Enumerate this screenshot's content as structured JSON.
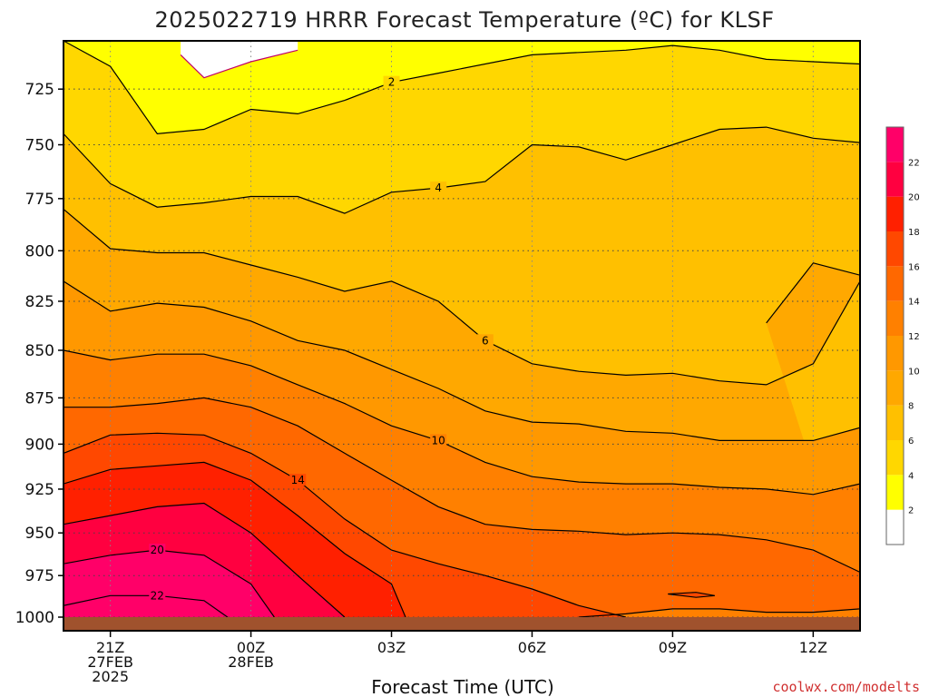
{
  "chart_data": {
    "type": "contour",
    "title": "2025022719 HRRR Forecast Temperature (ºC) for KLSF",
    "xlabel": "Forecast Time (UTC)",
    "ylabel": "",
    "credit": "coolwx.com/modelts",
    "colors": {
      "ground": "#a0522d",
      "contour_line": "#000000",
      "freezing_line": "#c0006a"
    },
    "x_ticks": [
      {
        "hour": 21,
        "lines": [
          "21Z",
          "27FEB",
          "2025"
        ]
      },
      {
        "hour": 24,
        "lines": [
          "00Z",
          "28FEB"
        ]
      },
      {
        "hour": 27,
        "lines": [
          "03Z"
        ]
      },
      {
        "hour": 30,
        "lines": [
          "06Z"
        ]
      },
      {
        "hour": 33,
        "lines": [
          "09Z"
        ]
      },
      {
        "hour": 36,
        "lines": [
          "12Z"
        ]
      }
    ],
    "xlim": [
      20,
      37
    ],
    "y_ticks": [
      "725",
      "750",
      "775",
      "800",
      "825",
      "850",
      "875",
      "900",
      "925",
      "950",
      "975",
      "1000"
    ],
    "ylim": [
      1000,
      704
    ],
    "y_scale": "log",
    "colorbar": {
      "levels": [
        {
          "label": "",
          "color": "#ffffff"
        },
        {
          "label": "2",
          "color": "#ffff00"
        },
        {
          "label": "4",
          "color": "#ffd700"
        },
        {
          "label": "6",
          "color": "#ffc000"
        },
        {
          "label": "8",
          "color": "#ffa800"
        },
        {
          "label": "10",
          "color": "#ff9800"
        },
        {
          "label": "12",
          "color": "#ff8000"
        },
        {
          "label": "14",
          "color": "#ff6800"
        },
        {
          "label": "16",
          "color": "#ff4800"
        },
        {
          "label": "18",
          "color": "#ff2000"
        },
        {
          "label": "20",
          "color": "#ff0040"
        },
        {
          "label": "22",
          "color": "#ff0068"
        }
      ]
    },
    "isotherms": [
      {
        "value": 0,
        "label": "",
        "points": [
          [
            22.5,
            710
          ],
          [
            23,
            720
          ],
          [
            24,
            713
          ],
          [
            25,
            708
          ]
        ]
      },
      {
        "value": 2,
        "label": "2",
        "points": [
          [
            20,
            704
          ],
          [
            21,
            715
          ],
          [
            22,
            745
          ],
          [
            23,
            743
          ],
          [
            24,
            734
          ],
          [
            25,
            736
          ],
          [
            26,
            730
          ],
          [
            27,
            722
          ],
          [
            28,
            718
          ],
          [
            30,
            710
          ],
          [
            31,
            709
          ],
          [
            32,
            708
          ],
          [
            33,
            706
          ],
          [
            34,
            708
          ],
          [
            35,
            712
          ],
          [
            36,
            713
          ],
          [
            37,
            714
          ]
        ]
      },
      {
        "value": 4,
        "label": "4",
        "points": [
          [
            20,
            745
          ],
          [
            21,
            768
          ],
          [
            22,
            779
          ],
          [
            23,
            777
          ],
          [
            24,
            774
          ],
          [
            25,
            774
          ],
          [
            26,
            782
          ],
          [
            27,
            772
          ],
          [
            28,
            770
          ],
          [
            29,
            767
          ],
          [
            30,
            750
          ],
          [
            31,
            751
          ],
          [
            32,
            757
          ],
          [
            33,
            750
          ],
          [
            34,
            743
          ],
          [
            35,
            742
          ],
          [
            36,
            747
          ],
          [
            37,
            749
          ]
        ]
      },
      {
        "value": 6,
        "label": "6",
        "points": [
          [
            20,
            780
          ],
          [
            21,
            799
          ],
          [
            22,
            801
          ],
          [
            23,
            801
          ],
          [
            24,
            807
          ],
          [
            25,
            813
          ],
          [
            26,
            820
          ],
          [
            27,
            815
          ],
          [
            28,
            825
          ],
          [
            29,
            845
          ],
          [
            30,
            857
          ],
          [
            31,
            861
          ],
          [
            32,
            863
          ],
          [
            33,
            862
          ],
          [
            34,
            866
          ],
          [
            35,
            868
          ],
          [
            36,
            857
          ],
          [
            37,
            815
          ],
          [
            37,
            812
          ],
          [
            36,
            806
          ],
          [
            35,
            836
          ]
        ]
      },
      {
        "value": 8,
        "label": "",
        "points": [
          [
            20,
            815
          ],
          [
            21,
            830
          ],
          [
            22,
            826
          ],
          [
            23,
            828
          ],
          [
            24,
            835
          ],
          [
            25,
            845
          ],
          [
            26,
            850
          ],
          [
            27,
            860
          ],
          [
            28,
            870
          ],
          [
            29,
            882
          ],
          [
            30,
            888
          ],
          [
            31,
            889
          ],
          [
            32,
            893
          ],
          [
            33,
            894
          ],
          [
            34,
            898
          ],
          [
            35,
            898
          ],
          [
            36,
            898
          ],
          [
            37,
            891
          ]
        ]
      },
      {
        "value": 10,
        "label": "10",
        "points": [
          [
            20,
            850
          ],
          [
            21,
            855
          ],
          [
            22,
            852
          ],
          [
            23,
            852
          ],
          [
            24,
            858
          ],
          [
            25,
            868
          ],
          [
            26,
            878
          ],
          [
            27,
            890
          ],
          [
            28,
            898
          ],
          [
            29,
            910
          ],
          [
            30,
            918
          ],
          [
            31,
            921
          ],
          [
            32,
            922
          ],
          [
            33,
            922
          ],
          [
            34,
            924
          ],
          [
            35,
            925
          ],
          [
            36,
            928
          ],
          [
            37,
            922
          ]
        ]
      },
      {
        "value": 12,
        "label": "",
        "points": [
          [
            20,
            880
          ],
          [
            21,
            880
          ],
          [
            22,
            878
          ],
          [
            23,
            875
          ],
          [
            24,
            880
          ],
          [
            25,
            890
          ],
          [
            26,
            905
          ],
          [
            27,
            920
          ],
          [
            28,
            935
          ],
          [
            29,
            945
          ],
          [
            30,
            948
          ],
          [
            31,
            949
          ],
          [
            32,
            951
          ],
          [
            33,
            950
          ],
          [
            34,
            951
          ],
          [
            35,
            954
          ],
          [
            36,
            960
          ],
          [
            37,
            973
          ],
          [
            37,
            995
          ],
          [
            36,
            997
          ],
          [
            35,
            997
          ],
          [
            34,
            995
          ],
          [
            33,
            995
          ],
          [
            32,
            998
          ],
          [
            31,
            1000
          ]
        ]
      },
      {
        "value": 14,
        "label": "14",
        "points": [
          [
            20,
            905
          ],
          [
            21,
            895
          ],
          [
            22,
            894
          ],
          [
            23,
            895
          ],
          [
            24,
            905
          ],
          [
            25,
            920
          ],
          [
            26,
            942
          ],
          [
            27,
            960
          ],
          [
            28,
            968
          ],
          [
            29,
            975
          ],
          [
            30,
            983
          ],
          [
            31,
            993
          ],
          [
            32,
            1000
          ]
        ]
      },
      {
        "value": 16,
        "label": "",
        "points": [
          [
            20,
            922
          ],
          [
            21,
            914
          ],
          [
            22,
            912
          ],
          [
            23,
            910
          ],
          [
            24,
            920
          ],
          [
            25,
            940
          ],
          [
            26,
            962
          ],
          [
            27,
            980
          ],
          [
            27.3,
            1000
          ]
        ]
      },
      {
        "value": 18,
        "label": "",
        "points": [
          [
            20,
            945
          ],
          [
            21,
            940
          ],
          [
            22,
            935
          ],
          [
            23,
            933
          ],
          [
            24,
            950
          ],
          [
            25,
            975
          ],
          [
            26,
            1000
          ]
        ]
      },
      {
        "value": 20,
        "label": "20",
        "points": [
          [
            20,
            968
          ],
          [
            21,
            963
          ],
          [
            22,
            960
          ],
          [
            23,
            963
          ],
          [
            24,
            980
          ],
          [
            24.5,
            1000
          ]
        ]
      },
      {
        "value": 22,
        "label": "22",
        "points": [
          [
            20,
            993
          ],
          [
            21,
            987
          ],
          [
            22,
            987
          ],
          [
            23,
            990
          ],
          [
            23.5,
            1000
          ]
        ]
      },
      {
        "value": 14,
        "label": "",
        "points": [
          [
            32.9,
            986
          ],
          [
            33.5,
            985
          ],
          [
            33.9,
            987
          ],
          [
            33.5,
            988
          ],
          [
            32.9,
            986
          ]
        ]
      }
    ]
  }
}
